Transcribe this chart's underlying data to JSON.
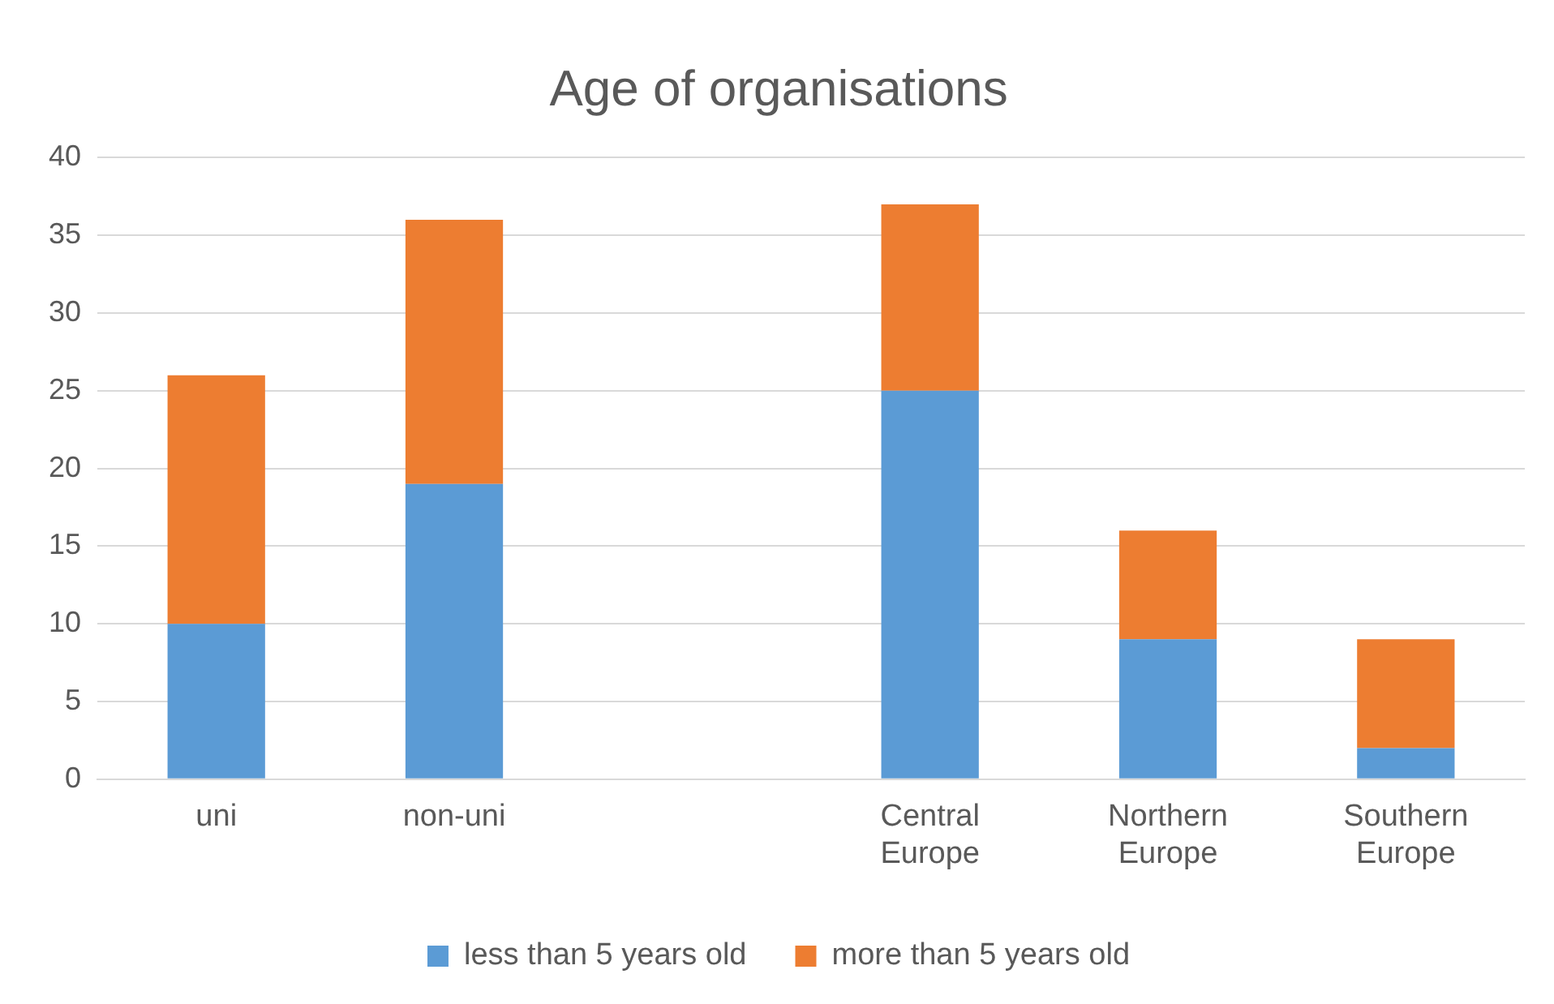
{
  "chart_data": {
    "type": "bar",
    "title": "Age of organisations",
    "categories": [
      "uni",
      "non-uni",
      null,
      "Central Europe",
      "Northern Europe",
      "Southern Europe"
    ],
    "stacked": true,
    "series": [
      {
        "name": "less than 5 years old",
        "color": "#5b9bd5",
        "values": [
          10,
          19,
          null,
          25,
          9,
          2
        ]
      },
      {
        "name": "more than 5 years old",
        "color": "#ed7d31",
        "values": [
          16,
          17,
          null,
          12,
          7,
          7
        ]
      }
    ],
    "ylim": [
      0,
      40
    ],
    "yticks": [
      0,
      5,
      10,
      15,
      20,
      25,
      30,
      35,
      40
    ],
    "grid": "y",
    "legend": "bottom"
  }
}
